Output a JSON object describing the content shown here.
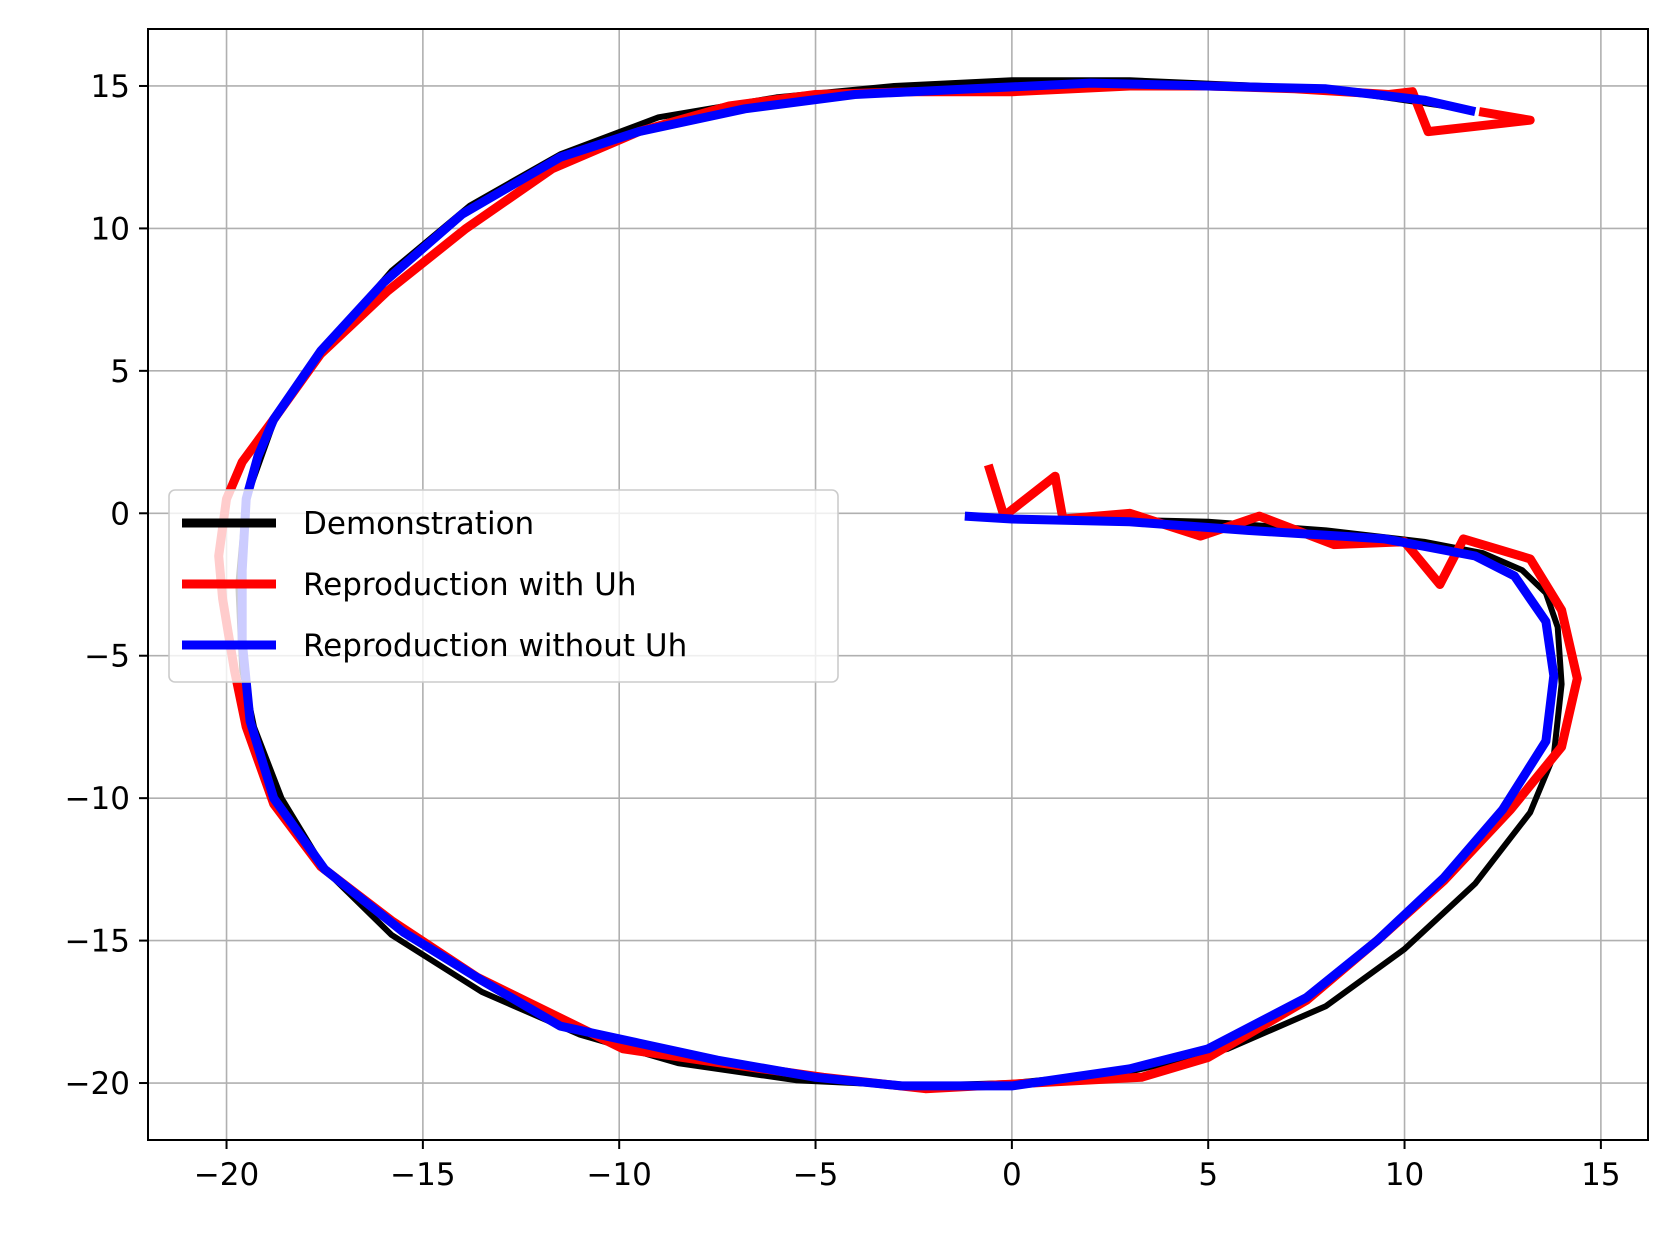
{
  "chart_data": {
    "type": "line",
    "title": "",
    "xlabel": "",
    "ylabel": "",
    "xlim": [
      -22.0,
      16.2
    ],
    "ylim": [
      -22.0,
      17.0
    ],
    "grid": true,
    "legend_position": "center-left",
    "xticks": [
      -20,
      -15,
      -10,
      -5,
      0,
      5,
      10,
      15
    ],
    "yticks": [
      15,
      10,
      5,
      0,
      -5,
      -10,
      -15,
      -20
    ],
    "xtick_labels": [
      "−20",
      "−15",
      "−10",
      "−5",
      "0",
      "5",
      "10",
      "15"
    ],
    "ytick_labels": [
      "15",
      "10",
      "5",
      "0",
      "−5",
      "−10",
      "−15",
      "−20"
    ],
    "series": [
      {
        "name": "Demonstration",
        "color": "#000000",
        "x": [
          11.5,
          8.0,
          3.0,
          0.0,
          -3.0,
          -6.0,
          -9.0,
          -11.5,
          -13.8,
          -15.8,
          -17.5,
          -18.8,
          -19.5,
          -19.7,
          -19.6,
          -19.3,
          -18.6,
          -17.5,
          -15.8,
          -13.5,
          -11.0,
          -8.5,
          -5.5,
          -2.5,
          0.0,
          3.0,
          5.5,
          8.0,
          10.0,
          11.8,
          13.2,
          13.8,
          14.0,
          13.9,
          13.6,
          13.0,
          12.0,
          10.5,
          8.0,
          5.0,
          2.0,
          0.0
        ],
        "y": [
          14.2,
          14.9,
          15.2,
          15.2,
          15.0,
          14.6,
          13.9,
          12.6,
          10.8,
          8.5,
          5.8,
          3.2,
          0.5,
          -2.5,
          -5.5,
          -7.5,
          -10.0,
          -12.5,
          -14.8,
          -16.8,
          -18.3,
          -19.3,
          -19.9,
          -20.1,
          -20.0,
          -19.6,
          -18.8,
          -17.3,
          -15.3,
          -13.0,
          -10.5,
          -8.5,
          -6.0,
          -4.0,
          -2.8,
          -2.0,
          -1.4,
          -1.0,
          -0.6,
          -0.3,
          -0.2,
          -0.2
        ]
      },
      {
        "name": "Reproduction with Uh",
        "color": "#ff0000",
        "x": [
          -0.6,
          -0.2,
          1.1,
          1.3,
          3.0,
          4.8,
          6.3,
          8.2,
          10.0,
          10.9,
          11.5,
          13.2,
          14.0,
          14.4,
          14.0,
          12.7,
          11.0,
          9.3,
          7.5,
          5.0,
          3.3,
          -2.2,
          -4.8,
          -7.4,
          -9.9,
          -13.6,
          -15.8,
          -17.6,
          -18.8,
          -19.5,
          -19.8,
          -20.1,
          -20.2,
          -20.0,
          -19.6,
          -18.8,
          -17.6,
          -15.9,
          -13.9,
          -11.7,
          -9.5,
          -7.2,
          -5.0,
          -2.5,
          0.0,
          3.0,
          5.0,
          7.2,
          9.6,
          10.2,
          10.6,
          13.2,
          11.9
        ],
        "y": [
          1.7,
          -0.1,
          1.3,
          -0.2,
          0.0,
          -0.8,
          -0.1,
          -1.1,
          -1.0,
          -2.5,
          -0.9,
          -1.6,
          -3.4,
          -5.8,
          -8.2,
          -10.4,
          -12.9,
          -15.0,
          -17.1,
          -19.1,
          -19.8,
          -20.2,
          -19.8,
          -19.3,
          -18.8,
          -16.3,
          -14.3,
          -12.4,
          -10.2,
          -7.5,
          -5.5,
          -3.0,
          -1.5,
          0.5,
          1.8,
          3.3,
          5.6,
          7.8,
          10.0,
          12.1,
          13.4,
          14.3,
          14.7,
          14.8,
          14.8,
          15.0,
          15.0,
          14.9,
          14.7,
          14.8,
          13.4,
          13.8,
          14.1
        ]
      },
      {
        "name": "Reproduction without Uh",
        "color": "#0000ff",
        "x": [
          -1.2,
          0.0,
          3.0,
          6.0,
          9.5,
          11.8,
          12.8,
          13.6,
          13.8,
          13.6,
          12.5,
          11.0,
          9.3,
          7.5,
          5.0,
          3.0,
          0.0,
          -2.8,
          -5.0,
          -7.5,
          -9.5,
          -11.5,
          -13.5,
          -15.5,
          -17.5,
          -18.8,
          -19.4,
          -19.6,
          -19.6,
          -19.5,
          -19.2,
          -18.8,
          -17.6,
          -16.0,
          -14.0,
          -11.5,
          -9.5,
          -6.8,
          -4.0,
          -1.0,
          2.0,
          5.0,
          8.0,
          10.5,
          11.8
        ],
        "y": [
          -0.1,
          -0.2,
          -0.3,
          -0.6,
          -0.9,
          -1.5,
          -2.2,
          -3.8,
          -5.7,
          -8.0,
          -10.4,
          -12.8,
          -15.0,
          -17.0,
          -18.8,
          -19.5,
          -20.1,
          -20.1,
          -19.8,
          -19.2,
          -18.6,
          -18.0,
          -16.4,
          -14.7,
          -12.5,
          -10.0,
          -7.3,
          -4.5,
          -2.0,
          0.5,
          2.0,
          3.3,
          5.7,
          8.1,
          10.5,
          12.5,
          13.4,
          14.2,
          14.7,
          14.9,
          15.1,
          15.0,
          14.9,
          14.5,
          14.1
        ]
      }
    ]
  }
}
